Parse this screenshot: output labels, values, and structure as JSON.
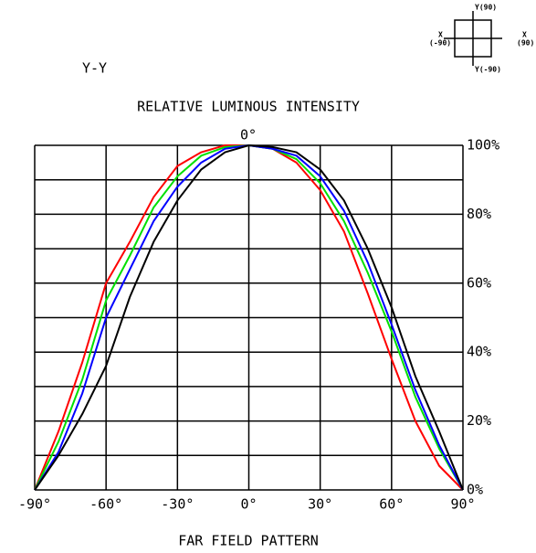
{
  "chart_data": {
    "type": "line",
    "section_label": "Y-Y",
    "title": "RELATIVE LUMINOUS INTENSITY",
    "xlabel": "FAR FIELD PATTERN",
    "top_label": "0°",
    "orientation": {
      "top": "Y(90)",
      "left": "X",
      "left_sub": "(-90)",
      "right": "X",
      "right_sub": "(90)",
      "bottom": "Y(-90)"
    },
    "x": [
      -90,
      -80,
      -70,
      -60,
      -50,
      -40,
      -30,
      -20,
      -10,
      0,
      10,
      20,
      30,
      40,
      50,
      60,
      70,
      80,
      90
    ],
    "series": [
      {
        "color": "#ff0000",
        "values": [
          0,
          17,
          37,
          60,
          72,
          85,
          94,
          98,
          100,
          100,
          99,
          95,
          87,
          75,
          57,
          38,
          20,
          7,
          0
        ]
      },
      {
        "color": "#00e000",
        "values": [
          0,
          14,
          32,
          55,
          68,
          82,
          91,
          97,
          99.5,
          100,
          99,
          96,
          89,
          78,
          63,
          46,
          27,
          12,
          0
        ]
      },
      {
        "color": "#0000ff",
        "values": [
          0,
          11,
          28,
          50,
          64,
          78,
          88,
          95,
          99,
          100,
          99,
          97,
          91,
          81,
          66,
          48,
          29,
          13,
          0
        ]
      },
      {
        "color": "#000000",
        "values": [
          0,
          10,
          22,
          36,
          56,
          72,
          84,
          93,
          98,
          100,
          99.5,
          98,
          93,
          84,
          70,
          53,
          33,
          17,
          0
        ]
      }
    ],
    "xlim": [
      -90,
      90
    ],
    "xticks": [
      {
        "value": -90,
        "label": "-90°"
      },
      {
        "value": -60,
        "label": "-60°"
      },
      {
        "value": -30,
        "label": "-30°"
      },
      {
        "value": 0,
        "label": "0°"
      },
      {
        "value": 30,
        "label": "30°"
      },
      {
        "value": 60,
        "label": "60°"
      },
      {
        "value": 90,
        "label": "90°"
      }
    ],
    "ylim": [
      0,
      100
    ],
    "yticks": [
      {
        "value": 0,
        "label": "0%"
      },
      {
        "value": 20,
        "label": "20%"
      },
      {
        "value": 40,
        "label": "40%"
      },
      {
        "value": 60,
        "label": "60%"
      },
      {
        "value": 80,
        "label": "80%"
      },
      {
        "value": 100,
        "label": "100%"
      }
    ],
    "yticks_minor": [
      10,
      30,
      50,
      70,
      90
    ],
    "grid": true
  }
}
